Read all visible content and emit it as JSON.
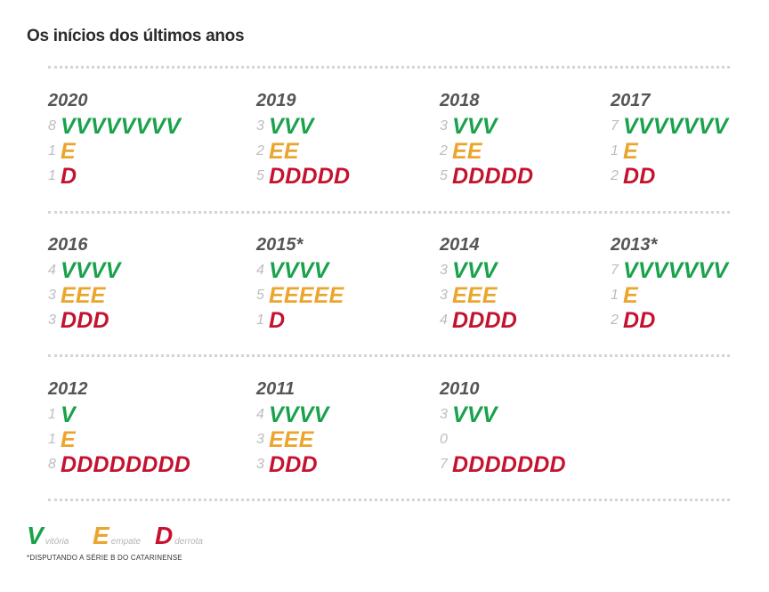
{
  "title": "Os inícios dos últimos anos",
  "colors": {
    "win": "#19a24b",
    "draw": "#eba52d",
    "loss": "#c4122f"
  },
  "seasons": [
    {
      "year": "2020",
      "wins": {
        "count": "8",
        "letters": "VVVVVVVV"
      },
      "draws": {
        "count": "1",
        "letters": "E"
      },
      "losses": {
        "count": "1",
        "letters": "D"
      }
    },
    {
      "year": "2019",
      "wins": {
        "count": "3",
        "letters": "VVV"
      },
      "draws": {
        "count": "2",
        "letters": "EE"
      },
      "losses": {
        "count": "5",
        "letters": "DDDDD"
      }
    },
    {
      "year": "2018",
      "wins": {
        "count": "3",
        "letters": "VVV"
      },
      "draws": {
        "count": "2",
        "letters": "EE"
      },
      "losses": {
        "count": "5",
        "letters": "DDDDD"
      }
    },
    {
      "year": "2017",
      "wins": {
        "count": "7",
        "letters": "VVVVVVV"
      },
      "draws": {
        "count": "1",
        "letters": "E"
      },
      "losses": {
        "count": "2",
        "letters": "DD"
      }
    },
    {
      "year": "2016",
      "wins": {
        "count": "4",
        "letters": "VVVV"
      },
      "draws": {
        "count": "3",
        "letters": "EEE"
      },
      "losses": {
        "count": "3",
        "letters": "DDD"
      }
    },
    {
      "year": "2015*",
      "wins": {
        "count": "4",
        "letters": "VVVV"
      },
      "draws": {
        "count": "5",
        "letters": "EEEEE"
      },
      "losses": {
        "count": "1",
        "letters": "D"
      }
    },
    {
      "year": "2014",
      "wins": {
        "count": "3",
        "letters": "VVV"
      },
      "draws": {
        "count": "3",
        "letters": "EEE"
      },
      "losses": {
        "count": "4",
        "letters": "DDDD"
      }
    },
    {
      "year": "2013*",
      "wins": {
        "count": "7",
        "letters": "VVVVVVV"
      },
      "draws": {
        "count": "1",
        "letters": "E"
      },
      "losses": {
        "count": "2",
        "letters": "DD"
      }
    },
    {
      "year": "2012",
      "wins": {
        "count": "1",
        "letters": "V"
      },
      "draws": {
        "count": "1",
        "letters": "E"
      },
      "losses": {
        "count": "8",
        "letters": "DDDDDDDD"
      }
    },
    {
      "year": "2011",
      "wins": {
        "count": "4",
        "letters": "VVVV"
      },
      "draws": {
        "count": "3",
        "letters": "EEE"
      },
      "losses": {
        "count": "3",
        "letters": "DDD"
      }
    },
    {
      "year": "2010",
      "wins": {
        "count": "3",
        "letters": "VVV"
      },
      "draws": {
        "count": "0",
        "letters": ""
      },
      "losses": {
        "count": "7",
        "letters": "DDDDDDD"
      }
    }
  ],
  "legend": {
    "win": {
      "letter": "V",
      "label": "vitória"
    },
    "draw": {
      "letter": "E",
      "label": "empate"
    },
    "loss": {
      "letter": "D",
      "label": "derrota"
    }
  },
  "footnote": "*DISPUTANDO A SÉRIE B DO CATARINENSE"
}
